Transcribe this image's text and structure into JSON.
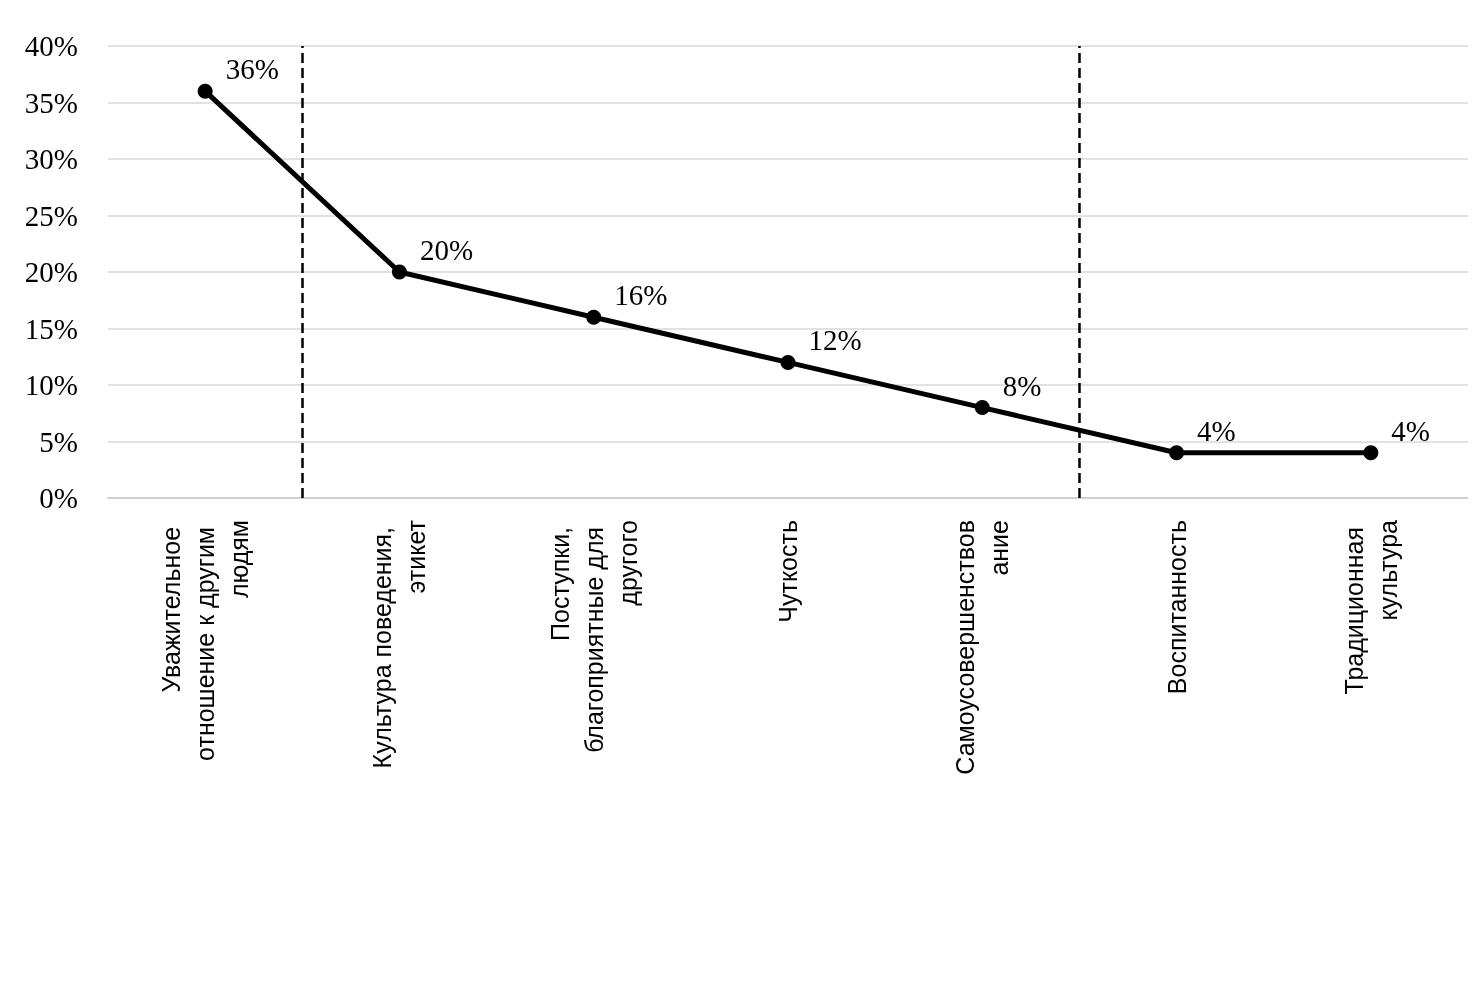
{
  "chart_data": {
    "type": "line",
    "categories": [
      "Уважительное отношение к другим людям",
      "Культура поведения, этикет",
      "Поступки, благоприятные для другого",
      "Чуткость",
      "Самоусовершенствование",
      "Воспитанность",
      "Традиционная культура"
    ],
    "values": [
      36,
      20,
      16,
      12,
      8,
      4,
      4
    ],
    "value_labels": [
      "36%",
      "20%",
      "16%",
      "12%",
      "8%",
      "4%",
      "4%"
    ],
    "color": "#000000",
    "ylim": [
      0,
      40
    ],
    "yticks": [
      {
        "value": 0,
        "label": "0%"
      },
      {
        "value": 5,
        "label": "5%"
      },
      {
        "value": 10,
        "label": "10%"
      },
      {
        "value": 15,
        "label": "15%"
      },
      {
        "value": 20,
        "label": "20%"
      },
      {
        "value": 25,
        "label": "25%"
      },
      {
        "value": 30,
        "label": "30%"
      },
      {
        "value": 35,
        "label": "35%"
      },
      {
        "value": 40,
        "label": "40%"
      }
    ],
    "grid": "y",
    "marker": "circle",
    "line_style": "solid"
  }
}
